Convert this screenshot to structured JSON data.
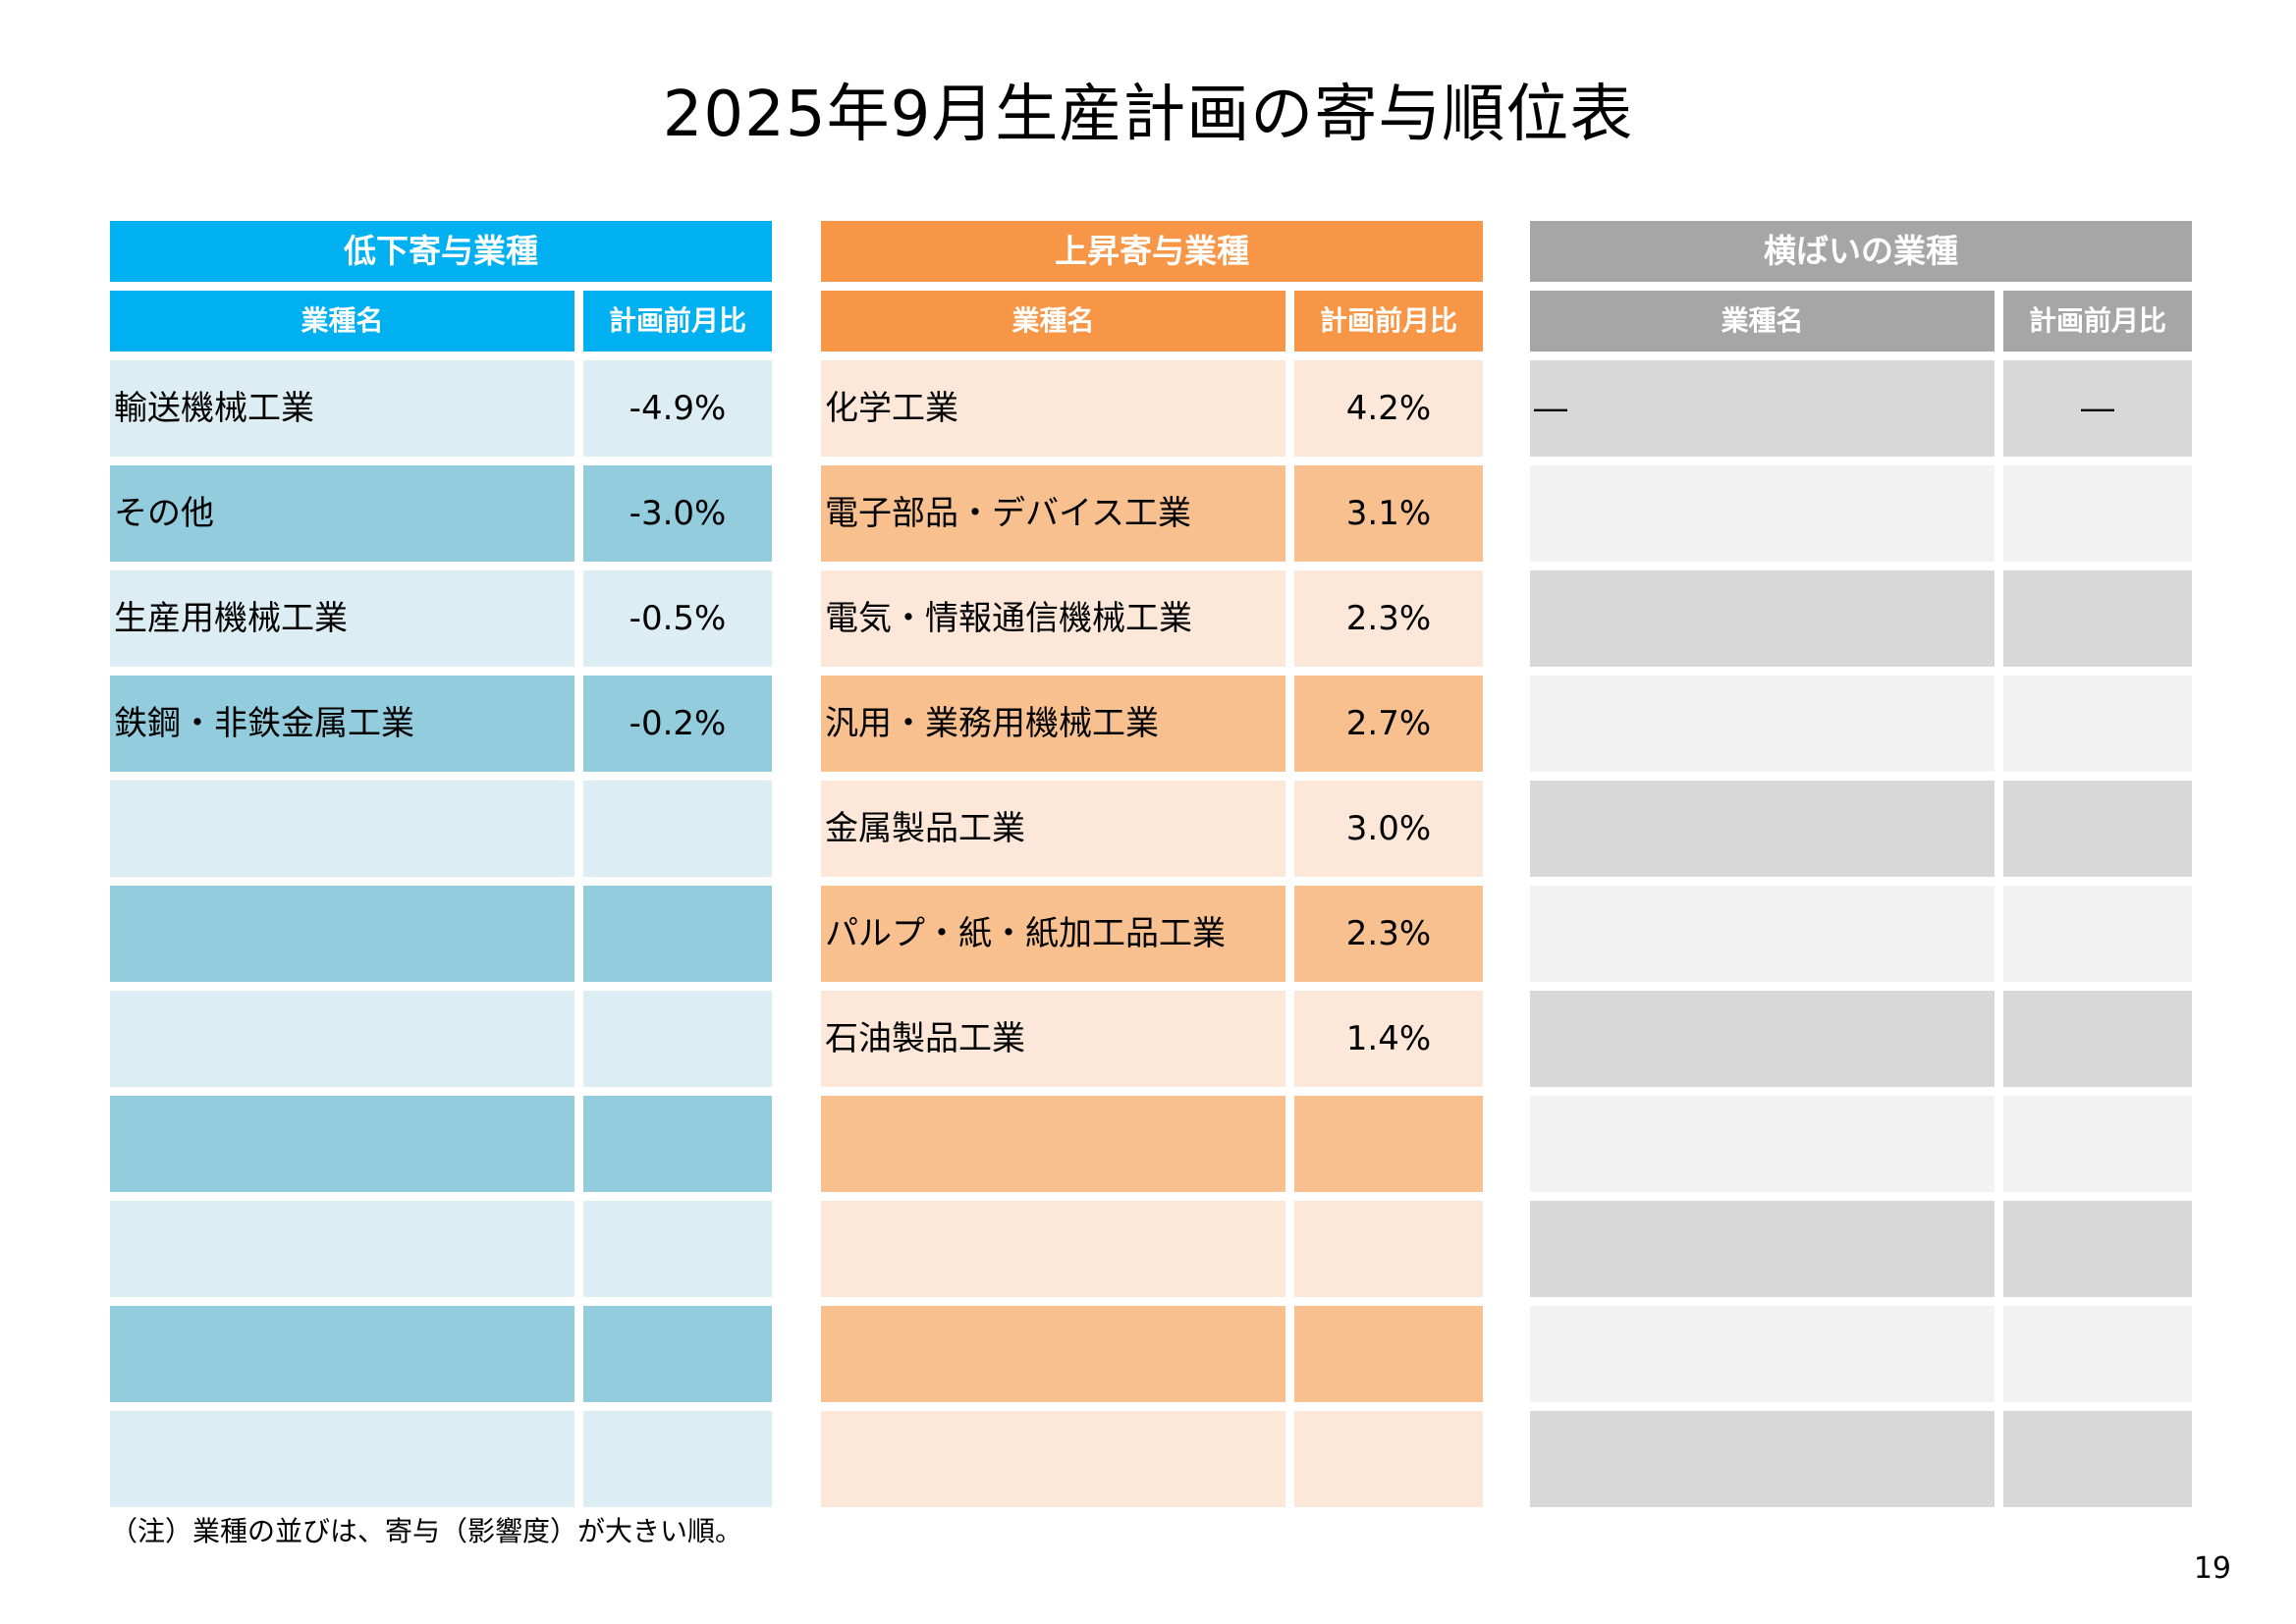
{
  "title": "2025年9月生産計画の寄与順位表",
  "panels": {
    "decline": {
      "header": "低下寄与業種",
      "col_name": "業種名",
      "col_value": "計画前月比",
      "color": "#00b0f0",
      "rows": [
        {
          "name": "輸送機械工業",
          "value": "-4.9%"
        },
        {
          "name": "その他",
          "value": "-3.0%"
        },
        {
          "name": "生産用機械工業",
          "value": "-0.5%"
        },
        {
          "name": "鉄鋼・非鉄金属工業",
          "value": "-0.2%"
        },
        {
          "name": "",
          "value": ""
        },
        {
          "name": "",
          "value": ""
        },
        {
          "name": "",
          "value": ""
        },
        {
          "name": "",
          "value": ""
        },
        {
          "name": "",
          "value": ""
        },
        {
          "name": "",
          "value": ""
        },
        {
          "name": "",
          "value": ""
        }
      ]
    },
    "rise": {
      "header": "上昇寄与業種",
      "col_name": "業種名",
      "col_value": "計画前月比",
      "color": "#f79646",
      "rows": [
        {
          "name": "化学工業",
          "value": "4.2%"
        },
        {
          "name": "電子部品・デバイス工業",
          "value": "3.1%"
        },
        {
          "name": "電気・情報通信機械工業",
          "value": "2.3%"
        },
        {
          "name": "汎用・業務用機械工業",
          "value": "2.7%"
        },
        {
          "name": "金属製品工業",
          "value": "3.0%"
        },
        {
          "name": "パルプ・紙・紙加工品工業",
          "value": "2.3%"
        },
        {
          "name": "石油製品工業",
          "value": "1.4%"
        },
        {
          "name": "",
          "value": ""
        },
        {
          "name": "",
          "value": ""
        },
        {
          "name": "",
          "value": ""
        },
        {
          "name": "",
          "value": ""
        }
      ]
    },
    "flat": {
      "header": "横ばいの業種",
      "col_name": "業種名",
      "col_value": "計画前月比",
      "color": "#a6a6a6",
      "rows": [
        {
          "name": "―",
          "value": "―"
        },
        {
          "name": "",
          "value": ""
        },
        {
          "name": "",
          "value": ""
        },
        {
          "name": "",
          "value": ""
        },
        {
          "name": "",
          "value": ""
        },
        {
          "name": "",
          "value": ""
        },
        {
          "name": "",
          "value": ""
        },
        {
          "name": "",
          "value": ""
        },
        {
          "name": "",
          "value": ""
        },
        {
          "name": "",
          "value": ""
        },
        {
          "name": "",
          "value": ""
        }
      ]
    }
  },
  "note": "（注）業種の並びは、寄与（影響度）が大きい順。",
  "page_number": "19"
}
